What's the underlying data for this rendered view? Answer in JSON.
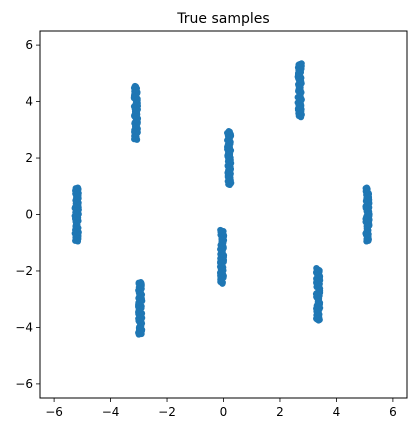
{
  "chart_data": {
    "type": "scatter",
    "title": "True samples",
    "xlabel": "",
    "ylabel": "",
    "xlim": [
      -6.5,
      6.5
    ],
    "ylim": [
      -6.5,
      6.5
    ],
    "xticks": [
      -6,
      -4,
      -2,
      0,
      2,
      4,
      6
    ],
    "yticks": [
      -6,
      -4,
      -2,
      0,
      2,
      4,
      6
    ],
    "xtick_labels": [
      "−6",
      "−4",
      "−2",
      "0",
      "2",
      "4",
      "6"
    ],
    "ytick_labels": [
      "−6",
      "−4",
      "−2",
      "0",
      "2",
      "4",
      "6"
    ],
    "grid": false,
    "point_color": "#1f77b4",
    "series": [
      {
        "clusters": [
          {
            "x": 0.2,
            "y_min": 1.05,
            "y_max": 2.95
          },
          {
            "x": 2.7,
            "y_min": 3.45,
            "y_max": 5.35
          },
          {
            "x": 5.1,
            "y_min": -0.95,
            "y_max": 0.95
          },
          {
            "x": 3.35,
            "y_min": -3.75,
            "y_max": -1.9
          },
          {
            "x": -0.05,
            "y_min": -2.45,
            "y_max": -0.55
          },
          {
            "x": -2.95,
            "y_min": -4.25,
            "y_max": -2.4
          },
          {
            "x": -5.2,
            "y_min": -0.95,
            "y_max": 0.95
          },
          {
            "x": -3.1,
            "y_min": 2.65,
            "y_max": 4.55
          }
        ]
      }
    ]
  }
}
